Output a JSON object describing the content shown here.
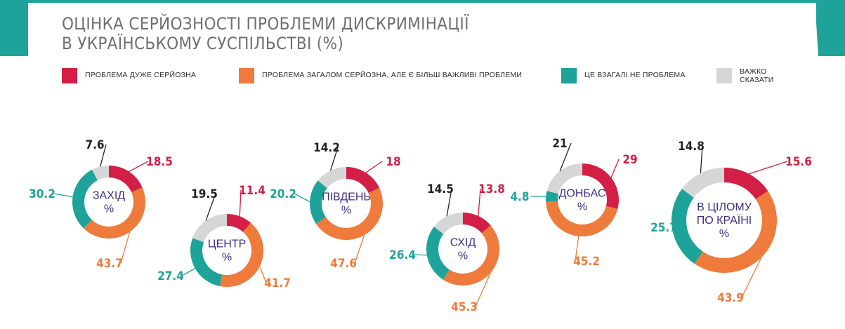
{
  "title": {
    "line1": "ОЦІНКА СЕРЙОЗНОСТІ ПРОБЛЕМИ ДИСКРИМІНАЦІЇ",
    "line2": "В УКРАЇНСЬКОМУ СУСПІЛЬСТВІ (%)"
  },
  "colors": {
    "very_serious": "#d31f45",
    "generally_serious": "#ee7b3c",
    "not_a_problem": "#1ea39a",
    "hard_to_say": "#d6d6d6",
    "teal_banner": "#1ea39a",
    "center_text": "#3d2f86"
  },
  "legend": [
    {
      "label": "ПРОБЛЕМА ДУЖЕ СЕРЙОЗНА",
      "color": "#d31f45"
    },
    {
      "label": "ПРОБЛЕМА ЗАГАЛОМ СЕРЙОЗНА, АЛЕ Є БІЛЬШ ВАЖЛИВІ ПРОБЛЕМИ",
      "color": "#ee7b3c"
    },
    {
      "label": "ЦЕ ВЗАГАЛІ НЕ ПРОБЛЕМА",
      "color": "#1ea39a"
    },
    {
      "label_line1": "ВАЖКО",
      "label_line2": "СКАЗАТИ",
      "color": "#d6d6d6"
    }
  ],
  "chart_data": {
    "type": "donut",
    "categories": [
      "ПРОБЛЕМА ДУЖЕ СЕРЙОЗНА",
      "ПРОБЛЕМА ЗАГАЛОМ СЕРЙОЗНА, АЛЕ Є БІЛЬШ ВАЖЛИВІ ПРОБЛЕМИ",
      "ЦЕ ВЗАГАЛІ НЕ ПРОБЛЕМА",
      "ВАЖКО СКАЗАТИ"
    ],
    "unit": "%",
    "regions": [
      {
        "name": "ЗАХІД",
        "values": [
          18.5,
          43.7,
          30.2,
          7.6
        ],
        "labels": [
          "18.5",
          "43.7",
          "30.2",
          "7.6"
        ]
      },
      {
        "name": "ЦЕНТР",
        "values": [
          11.4,
          41.7,
          27.4,
          19.5
        ],
        "labels": [
          "11.4",
          "41.7",
          "27.4",
          "19.5"
        ]
      },
      {
        "name": "ПІВДЕНЬ",
        "values": [
          18,
          47.6,
          20.2,
          14.2
        ],
        "labels": [
          "18",
          "47.6",
          "20.2",
          "14.2"
        ]
      },
      {
        "name": "СХІД",
        "values": [
          13.8,
          45.3,
          26.4,
          14.5
        ],
        "labels": [
          "13.8",
          "45.3",
          "26.4",
          "14.5"
        ]
      },
      {
        "name": "ДОНБАС",
        "values": [
          29,
          45.2,
          4.8,
          21
        ],
        "labels": [
          "29",
          "45.2",
          "4.8",
          "21"
        ]
      },
      {
        "name_line1": "В ЦІЛОМУ",
        "name_line2": "ПО КРАЇНІ",
        "values": [
          15.6,
          43.9,
          25.7,
          14.8
        ],
        "labels": [
          "15.6",
          "43.9",
          "25.7",
          "14.8"
        ]
      }
    ]
  }
}
